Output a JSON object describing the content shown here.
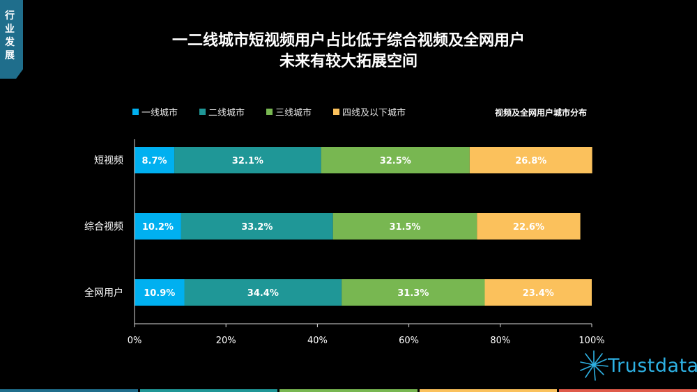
{
  "side_tab": {
    "label": "行\n业\n发\n展"
  },
  "title": {
    "line1": "一二线城市短视频用户占比低于综合视频及全网用户",
    "line2": "未来有较大拓展空间"
  },
  "chart_data": {
    "type": "bar",
    "orientation": "horizontal",
    "stacked": true,
    "subtitle": "视频及全网用户城市分布",
    "categories": [
      "短视频",
      "综合视频",
      "全网用户"
    ],
    "series": [
      {
        "name": "一线城市",
        "values": [
          8.7,
          10.2,
          10.9
        ],
        "labels": [
          "8.7%",
          "10.2%",
          "10.9%"
        ],
        "color": "#00b0f0"
      },
      {
        "name": "二线城市",
        "values": [
          32.1,
          33.2,
          34.4
        ],
        "labels": [
          "32.1%",
          "33.2%",
          "34.4%"
        ],
        "color": "#1f9797"
      },
      {
        "name": "三线城市",
        "values": [
          32.5,
          31.5,
          31.3
        ],
        "labels": [
          "32.5%",
          "31.5%",
          "31.3%"
        ],
        "color": "#78b751"
      },
      {
        "name": "四线及以下城市",
        "values": [
          26.8,
          22.6,
          23.4
        ],
        "labels": [
          "26.8%",
          "22.6%",
          "23.4%"
        ],
        "color": "#fbc15c"
      }
    ],
    "xlim": [
      0,
      100
    ],
    "x_ticks": [
      "0%",
      "20%",
      "40%",
      "60%",
      "80%",
      "100%"
    ],
    "legend_position": "top-left",
    "grid": false
  },
  "logo": {
    "text": "Trustdata",
    "color": "#2eb1e3"
  },
  "bottom_bar_colors": [
    "#1f6e8c",
    "#1f9797",
    "#78b751",
    "#fbc15c",
    "#e05a4a"
  ]
}
